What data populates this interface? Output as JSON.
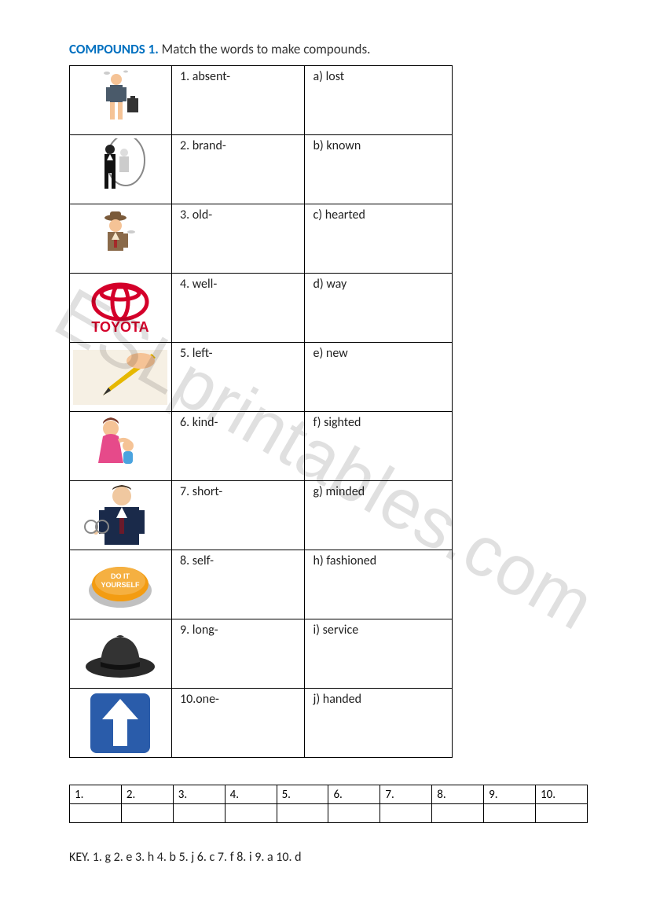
{
  "title": {
    "accent": "COMPOUNDS  1.",
    "rest": " Match the words to make compounds."
  },
  "rows": [
    {
      "word": "1.  absent-",
      "match": "a)  lost",
      "icon": "man-forget"
    },
    {
      "word": "2.  brand-",
      "match": "b)  known",
      "icon": "suit-mirror"
    },
    {
      "word": "3.  old-",
      "match": "c)  hearted",
      "icon": "man-hat"
    },
    {
      "word": "4.  well-",
      "match": "d)  way",
      "icon": "toyota"
    },
    {
      "word": "5.  left-",
      "match": "e)  new",
      "icon": "hand-write"
    },
    {
      "word": "6.  kind-",
      "match": "f)   sighted",
      "icon": "mother-child"
    },
    {
      "word": "7.  short-",
      "match": "g)  minded",
      "icon": "man-glasses"
    },
    {
      "word": "8.  self-",
      "match": "h)  fashioned",
      "icon": "diy-button"
    },
    {
      "word": "9.  long-",
      "match": "i)    service",
      "icon": "hat"
    },
    {
      "word": "10.one-",
      "match": "j)   handed",
      "icon": "arrow-sign"
    }
  ],
  "answer_headers": [
    "1.",
    "2.",
    "3.",
    "4.",
    "5.",
    "6.",
    "7.",
    "8.",
    "9.",
    "10."
  ],
  "key_text": "KEY. 1. g 2. e 3. h 4. b 5. j 6. c 7. f 8. i 9. a 10. d",
  "watermark": "ESLprintables.com",
  "colors": {
    "accent": "#0070c0",
    "text": "#222222",
    "border": "#000000",
    "toyota_red": "#d4002a",
    "sign_blue": "#2a5caa"
  }
}
